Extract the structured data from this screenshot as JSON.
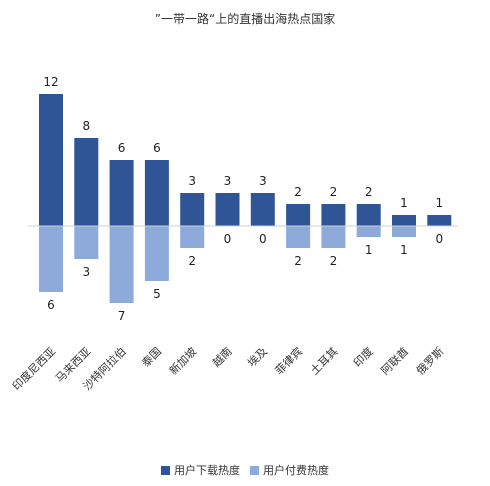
{
  "chart_data": {
    "type": "bar",
    "title": "”一带一路“上的直播出海热点国家",
    "categories": [
      "印度尼西亚",
      "马来西亚",
      "沙特阿拉伯",
      "泰国",
      "新加坡",
      "越南",
      "埃及",
      "菲律宾",
      "土耳其",
      "印度",
      "阿联酋",
      "俄罗斯"
    ],
    "series": [
      {
        "name": "用户下载热度",
        "values": [
          12,
          8,
          6,
          6,
          3,
          3,
          3,
          2,
          2,
          2,
          1,
          1
        ],
        "color": "#2f5597",
        "direction": "up"
      },
      {
        "name": "用户付费热度",
        "values": [
          6,
          3,
          7,
          5,
          2,
          0,
          0,
          2,
          2,
          1,
          1,
          0
        ],
        "color": "#8eaadb",
        "direction": "down"
      }
    ],
    "grid": false,
    "legend_position": "bottom"
  }
}
